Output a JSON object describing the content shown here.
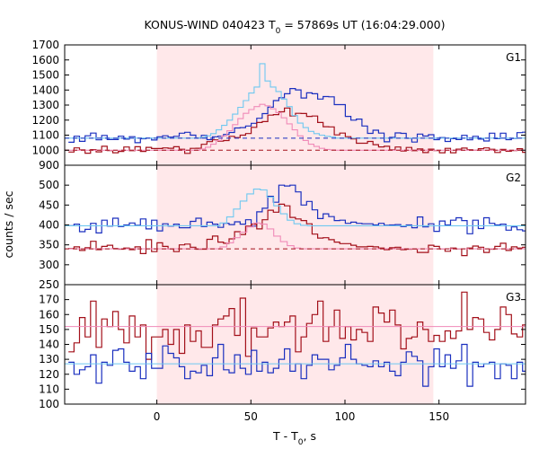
{
  "chart_data": {
    "type": "line",
    "title": {
      "prefix": "KONUS-WIND 040423 T",
      "subscript": "0",
      "suffix": " = 57869s UT (16:04:29.000)"
    },
    "xlabel": {
      "prefix": "T - T",
      "subscript": "0",
      "suffix": ", s"
    },
    "ylabel": "counts / sec",
    "xlim": [
      -49,
      196
    ],
    "x_ticks": [
      0,
      50,
      100,
      150
    ],
    "highlight_interval": {
      "start": 0,
      "end": 147,
      "color": "#ffe8ea"
    },
    "colors": {
      "blue": "#1a2fbf",
      "red": "#a3101a",
      "light_blue": "#6ec8f0",
      "pink": "#f08ab8"
    },
    "panels": [
      {
        "name": "G1",
        "ylim": [
          900,
          1700
        ],
        "y_ticks": [
          900,
          1000,
          1100,
          1200,
          1300,
          1400,
          1500,
          1600,
          1700
        ],
        "bin_width": 2.944,
        "series": [
          {
            "color": "blue",
            "baseline": 1080,
            "peak": 300,
            "peak_center": 48,
            "peak_width": 16,
            "noise": 25,
            "values": [
              1053,
              1093,
              1059,
              1096,
              1114,
              1069,
              1098,
              1071,
              1071,
              1093,
              1074,
              1090,
              1050,
              1076,
              1080,
              1068,
              1089,
              1096,
              1087,
              1092,
              1113,
              1119,
              1100,
              1080,
              1099,
              1070,
              1089,
              1093,
              1105,
              1118,
              1148,
              1150,
              1161,
              1179,
              1212,
              1243,
              1286,
              1330,
              1349,
              1375,
              1410,
              1401,
              1347,
              1381,
              1375,
              1340,
              1357,
              1355,
              1303,
              1303,
              1225,
              1200,
              1207,
              1161,
              1112,
              1133,
              1114,
              1056,
              1085,
              1115,
              1112,
              1079,
              1054,
              1107,
              1094,
              1103,
              1070,
              1084,
              1058,
              1077,
              1071,
              1099,
              1069,
              1092,
              1074,
              1061,
              1113,
              1077,
              1113,
              1070,
              1078,
              1117,
              1120
            ]
          },
          {
            "color": "red",
            "baseline": 1000,
            "peak": 250,
            "peak_center": 48,
            "peak_width": 16,
            "noise": 20,
            "values": [
              988,
              1015,
              1002,
              980,
              1004,
              989,
              1026,
              998,
              983,
              992,
              1021,
              997,
              1023,
              992,
              1019,
              1011,
              1011,
              1015,
              1013,
              1023,
              1006,
              979,
              1012,
              1013,
              1039,
              1057,
              1069,
              1060,
              1064,
              1092,
              1084,
              1100,
              1111,
              1152,
              1184,
              1190,
              1233,
              1237,
              1255,
              1280,
              1227,
              1245,
              1244,
              1225,
              1227,
              1184,
              1156,
              1155,
              1102,
              1114,
              1090,
              1075,
              1046,
              1046,
              1058,
              1037,
              1022,
              1026,
              1002,
              1021,
              995,
              1018,
              997,
              1008,
              984,
              1007,
              998,
              983,
              1012,
              983,
              1007,
              1014,
              1003,
              1000,
              1010,
              1015,
              1006,
              985,
              1005,
              993,
              998,
              1010,
              986
            ]
          },
          {
            "color": "light_blue",
            "baseline": 1080,
            "start": 20,
            "end": 95,
            "values": [
              1080,
              1085,
              1095,
              1110,
              1135,
              1165,
              1200,
              1240,
              1285,
              1330,
              1380,
              1420,
              1575,
              1460,
              1420,
              1390,
              1340,
              1290,
              1230,
              1180,
              1150,
              1125,
              1110,
              1100,
              1092,
              1088
            ]
          },
          {
            "color": "pink",
            "baseline": 1000,
            "start": 20,
            "end": 95,
            "values": [
              1000,
              1008,
              1020,
              1040,
              1065,
              1095,
              1130,
              1170,
              1210,
              1245,
              1270,
              1290,
              1305,
              1295,
              1275,
              1250,
              1215,
              1175,
              1135,
              1095,
              1065,
              1040,
              1025,
              1012,
              1005,
              1002
            ]
          }
        ]
      },
      {
        "name": "G2",
        "ylim": [
          250,
          550
        ],
        "y_ticks": [
          250,
          300,
          350,
          400,
          450,
          500
        ],
        "bin_width": 2.944,
        "series": [
          {
            "color": "blue",
            "values": [
              398,
              402,
              383,
              389,
              404,
              380,
              412,
              397,
              417,
              396,
              400,
              405,
              399,
              415,
              390,
              412,
              385,
              403,
              397,
              402,
              393,
              393,
              409,
              417,
              396,
              407,
              402,
              394,
              404,
              401,
              408,
              402,
              413,
              397,
              433,
              442,
              472,
              457,
              500,
              498,
              500,
              483,
              450,
              459,
              438,
              416,
              428,
              421,
              411,
              412,
              404,
              407,
              404,
              403,
              403,
              400,
              404,
              399,
              400,
              401,
              396,
              400,
              393,
              420,
              395,
              403,
              384,
              410,
              400,
              412,
              418,
              411,
              378,
              412,
              391,
              418,
              404,
              400,
              402,
              387,
              395,
              388,
              385
            ]
          },
          {
            "color": "red",
            "values": [
              341,
              345,
              336,
              343,
              359,
              338,
              346,
              349,
              341,
              339,
              342,
              338,
              345,
              328,
              363,
              333,
              355,
              346,
              340,
              333,
              350,
              352,
              344,
              339,
              339,
              364,
              372,
              357,
              354,
              365,
              383,
              376,
              397,
              402,
              390,
              413,
              437,
              432,
              452,
              448,
              419,
              415,
              411,
              403,
              377,
              367,
              368,
              363,
              357,
              353,
              353,
              349,
              345,
              345,
              346,
              345,
              342,
              338,
              343,
              344,
              338,
              339,
              340,
              331,
              331,
              349,
              346,
              340,
              334,
              342,
              340,
              323,
              342,
              347,
              344,
              331,
              339,
              346,
              354,
              336,
              345,
              342,
              344
            ]
          },
          {
            "color": "light_blue",
            "baseline": 398,
            "start": 30,
            "end": 80,
            "values": [
              398,
              405,
              420,
              440,
              460,
              478,
              490,
              488,
              470,
              448,
              428,
              412,
              403,
              399
            ]
          },
          {
            "color": "pink",
            "baseline": 340,
            "start": 30,
            "end": 80,
            "values": [
              340,
              345,
              355,
              368,
              382,
              395,
              405,
              402,
              390,
              372,
              358,
              348,
              342,
              340
            ]
          }
        ]
      },
      {
        "name": "G3",
        "ylim": [
          100,
          180
        ],
        "y_ticks": [
          100,
          110,
          120,
          130,
          140,
          150,
          160,
          170
        ],
        "bin_width": 2.944,
        "series": [
          {
            "color": "red",
            "values": [
              135,
              141,
              158,
              145,
              169,
              138,
              157,
              152,
              162,
              150,
              141,
              159,
              145,
              153,
              130,
              145,
              145,
              150,
              140,
              150,
              134,
              153,
              142,
              149,
              138,
              138,
              153,
              157,
              159,
              164,
              146,
              171,
              132,
              151,
              145,
              145,
              151,
              155,
              152,
              155,
              159,
              135,
              145,
              154,
              160,
              169,
              142,
              152,
              163,
              144,
              152,
              143,
              150,
              148,
              142,
              165,
              161,
              155,
              163,
              153,
              137,
              144,
              145,
              155,
              150,
              142,
              146,
              142,
              149,
              144,
              149,
              175,
              150,
              158,
              157,
              148,
              143,
              150,
              165,
              160,
              147,
              145,
              153
            ]
          },
          {
            "color": "blue",
            "values": [
              128,
              120,
              123,
              125,
              133,
              114,
              128,
              126,
              136,
              137,
              128,
              122,
              125,
              117,
              134,
              124,
              124,
              139,
              134,
              131,
              125,
              117,
              122,
              121,
              126,
              119,
              131,
              140,
              123,
              121,
              133,
              124,
              120,
              136,
              122,
              128,
              121,
              124,
              130,
              137,
              122,
              127,
              117,
              126,
              133,
              130,
              130,
              123,
              126,
              131,
              140,
              130,
              127,
              126,
              125,
              129,
              125,
              128,
              122,
              119,
              128,
              135,
              132,
              129,
              112,
              125,
              137,
              125,
              133,
              124,
              129,
              140,
              112,
              128,
              125,
              127,
              128,
              117,
              127,
              126,
              117,
              128,
              122
            ]
          },
          {
            "color": "pink",
            "flat": 152
          },
          {
            "color": "light_blue",
            "flat": 127
          }
        ]
      }
    ],
    "dashed_baselines": [
      {
        "panel": 0,
        "value": 1080,
        "color": "blue"
      },
      {
        "panel": 0,
        "value": 1000,
        "color": "red"
      },
      {
        "panel": 1,
        "value": 340,
        "color": "red"
      }
    ]
  }
}
